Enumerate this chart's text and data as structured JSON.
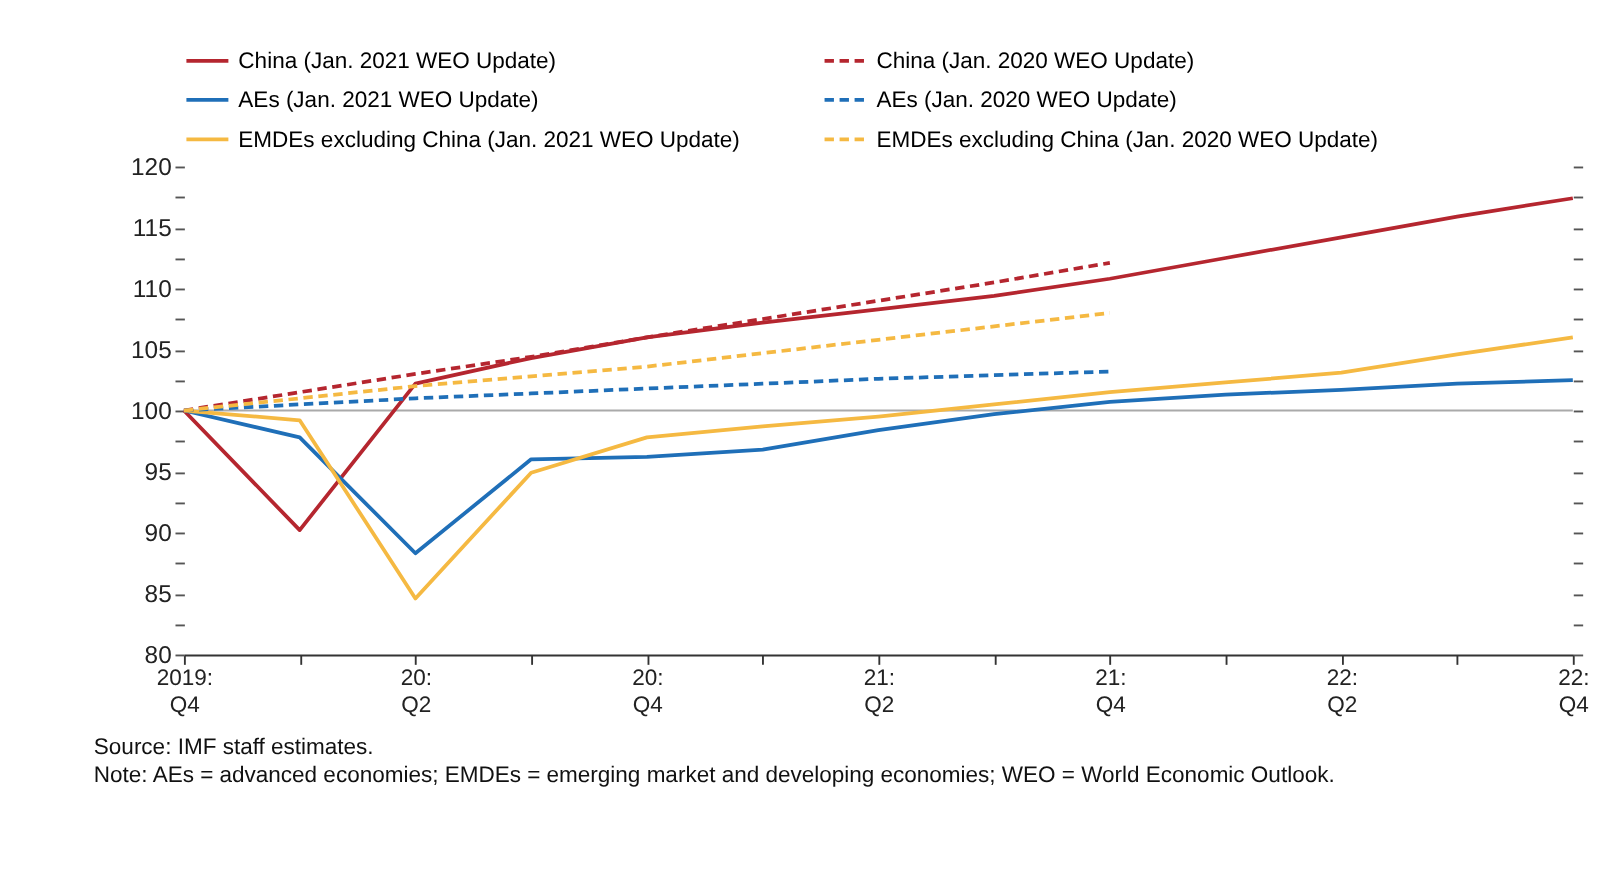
{
  "chart_data": {
    "type": "line",
    "categories": [
      "2019:\nQ4",
      null,
      "20:\nQ2",
      null,
      "20:\nQ4",
      null,
      "21:\nQ2",
      null,
      "21:\nQ4",
      null,
      "22:\nQ2",
      null,
      "22:\nQ4"
    ],
    "series": [
      {
        "name": "China (Jan. 2021 WEO Update)",
        "color": "#b5262f",
        "line_style": "solid",
        "values": [
          100,
          90.2,
          102.2,
          104.3,
          106.0,
          107.2,
          108.3,
          109.4,
          110.8,
          112.5,
          114.2,
          115.9,
          117.4
        ]
      },
      {
        "name": "AEs (Jan. 2021 WEO Update)",
        "color": "#1f6fb8",
        "line_style": "solid",
        "values": [
          100,
          97.8,
          88.3,
          96.0,
          96.2,
          96.8,
          98.4,
          99.7,
          100.7,
          101.3,
          101.7,
          102.2,
          102.5
        ]
      },
      {
        "name": "EMDEs excluding China (Jan. 2021 WEO Update)",
        "color": "#f5b942",
        "line_style": "solid",
        "values": [
          100,
          99.2,
          84.6,
          94.9,
          97.8,
          98.7,
          99.5,
          100.5,
          101.5,
          102.3,
          103.1,
          104.6,
          106.0
        ]
      },
      {
        "name": "China (Jan. 2020 WEO Update)",
        "color": "#b5262f",
        "line_style": "dashed",
        "values": [
          100,
          101.5,
          103.0,
          104.4,
          106.0,
          107.5,
          109.0,
          110.5,
          112.1,
          null,
          null,
          null,
          null
        ]
      },
      {
        "name": "AEs (Jan. 2020 WEO Update)",
        "color": "#1f6fb8",
        "line_style": "dashed",
        "values": [
          100,
          100.5,
          101.0,
          101.4,
          101.8,
          102.2,
          102.6,
          102.9,
          103.2,
          null,
          null,
          null,
          null
        ]
      },
      {
        "name": "EMDEs excluding China (Jan. 2020 WEO Update)",
        "color": "#f5b942",
        "line_style": "dashed",
        "values": [
          100,
          101.0,
          102.0,
          102.8,
          103.6,
          104.7,
          105.8,
          106.9,
          108.0,
          null,
          null,
          null,
          null
        ]
      }
    ],
    "ylim": [
      80,
      120
    ],
    "yticks": [
      80,
      {
        "value": 82.5,
        "label": null
      },
      85,
      {
        "value": 87.5,
        "label": null
      },
      90,
      {
        "value": 92.5,
        "label": null
      },
      95,
      {
        "value": 97.5,
        "label": null
      },
      100,
      {
        "value": 102.5,
        "label": null
      },
      105,
      {
        "value": 107.5,
        "label": null
      },
      110,
      {
        "value": 112.5,
        "label": null
      },
      115,
      {
        "value": 117.5,
        "label": null
      },
      120
    ],
    "ref_lines": [
      {
        "axis": "y",
        "value": 100,
        "color": "#aaaaaa"
      }
    ],
    "grid": false,
    "legend": "top",
    "annotations": [
      "Source: IMF staff estimates.",
      "Note: AEs = advanced economies; EMDEs = emerging market and developing economies; WEO = World Economic Outlook."
    ]
  }
}
